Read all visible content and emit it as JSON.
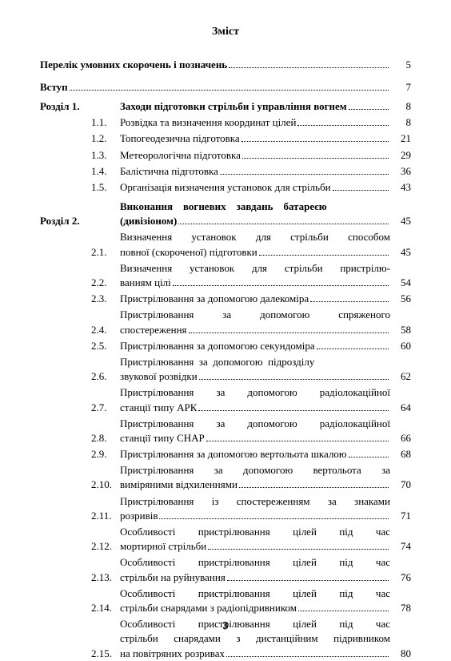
{
  "title": "Зміст",
  "pageNumber": "3",
  "rows": [
    {
      "label": "",
      "num": "",
      "lines": [
        "Перелік умовних скорочень і позначень"
      ],
      "page": "5",
      "bold": true,
      "full": true
    },
    {
      "gap": "section"
    },
    {
      "label": "",
      "num": "",
      "lines": [
        "Вступ"
      ],
      "page": "7",
      "bold": true,
      "full": true
    },
    {
      "gap": "small"
    },
    {
      "label": "Розділ 1.",
      "num": "",
      "lines": [
        "Заходи підготовки стрільби і управління вогнем"
      ],
      "page": "8",
      "bold": true
    },
    {
      "label": "",
      "num": "1.1.",
      "lines": [
        "Розвідка та визначення координат цілей"
      ],
      "page": "8"
    },
    {
      "label": "",
      "num": "1.2.",
      "lines": [
        "Топогеодезична підготовка"
      ],
      "page": "21"
    },
    {
      "label": "",
      "num": "1.3.",
      "lines": [
        "Метеорологічна підготовка"
      ],
      "page": "29"
    },
    {
      "label": "",
      "num": "1.4.",
      "lines": [
        "Балістична підготовка"
      ],
      "page": "36"
    },
    {
      "label": "",
      "num": "1.5.",
      "lines": [
        "Організація визначення установок для стрільби"
      ],
      "page": "43"
    },
    {
      "gap": "small"
    },
    {
      "label": "Розділ 2.",
      "num": "",
      "lines": [
        "Виконання вогневих завдань батареєю",
        "(дивізіоном)"
      ],
      "page": "45",
      "bold": true,
      "justify": true
    },
    {
      "label": "",
      "num": "2.1.",
      "lines": [
        "Визначення установок для стрільби способом",
        "повної (скороченої) підготовки"
      ],
      "page": "45",
      "justify": true
    },
    {
      "label": "",
      "num": "2.2.",
      "lines": [
        "Визначення установок для стрільби пристрілю-",
        "ванням цілі"
      ],
      "page": "54",
      "justify": true
    },
    {
      "label": "",
      "num": "2.3.",
      "lines": [
        "Пристрілювання за допомогою далекоміра"
      ],
      "page": "56"
    },
    {
      "label": "",
      "num": "2.4.",
      "lines": [
        "Пристрілювання за допомогою спряженого",
        "спостереження"
      ],
      "page": "58",
      "justify": true
    },
    {
      "label": "",
      "num": "2.5.",
      "lines": [
        "Пристрілювання за допомогою секундоміра"
      ],
      "page": "60"
    },
    {
      "label": "",
      "num": "2.6.",
      "lines": [
        "Пристрілювання за допомогою підрозділу",
        "звукової розвідки"
      ],
      "page": "62",
      "justify": true
    },
    {
      "label": "",
      "num": "2.7.",
      "lines": [
        "Пристрілювання за допомогою радіолокаційної",
        "станції типу АРК"
      ],
      "page": "64",
      "justify": true
    },
    {
      "label": "",
      "num": "2.8.",
      "lines": [
        "Пристрілювання за допомогою радіолокаційної",
        "станції типу СНАР"
      ],
      "page": "66",
      "justify": true
    },
    {
      "label": "",
      "num": "2.9.",
      "lines": [
        "Пристрілювання за допомогою вертольота шкалою"
      ],
      "page": "68"
    },
    {
      "label": "",
      "num": "2.10.",
      "lines": [
        "Пристрілювання за допомогою вертольота за",
        "виміряними відхиленнями"
      ],
      "page": "70",
      "justify": true
    },
    {
      "label": "",
      "num": "2.11.",
      "lines": [
        "Пристрілювання із спостереженням за знаками",
        "розривів"
      ],
      "page": "71",
      "justify": true
    },
    {
      "label": "",
      "num": "2.12.",
      "lines": [
        "Особливості пристрілювання цілей під час",
        "мортирної стрільби"
      ],
      "page": "74",
      "justify": true
    },
    {
      "label": "",
      "num": "2.13.",
      "lines": [
        "Особливості пристрілювання цілей під час",
        "стрільби на руйнування"
      ],
      "page": "76",
      "justify": true
    },
    {
      "label": "",
      "num": "2.14.",
      "lines": [
        "Особливості пристрілювання цілей під час",
        "стрільби снарядами з радіопідривником"
      ],
      "page": "78",
      "justify": true
    },
    {
      "label": "",
      "num": "2.15.",
      "lines": [
        "Особливості пристрілювання цілей під час",
        "стрільби снарядами з дистанційним підривником",
        "на повітряних розривах"
      ],
      "page": "80",
      "justify": true
    }
  ]
}
